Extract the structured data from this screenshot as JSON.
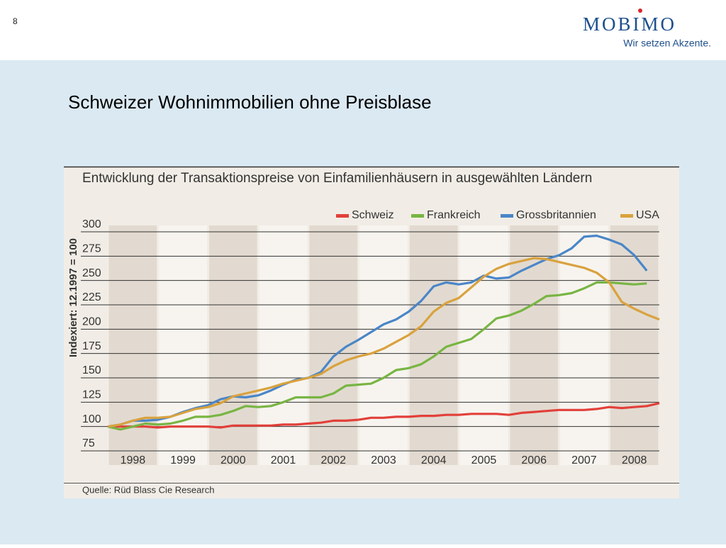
{
  "header": {
    "page_number": "8",
    "logo": "MOBIMO",
    "tagline": "Wir setzen Akzente."
  },
  "slide_title": "Schweizer Wohnimmobilien ohne Preisblase",
  "chart_data": {
    "type": "line",
    "title": "Entwicklung der Transaktionspreise von Einfamilienhäusern in ausgewählten Ländern",
    "y_label": "Indexiert: 12.1997 = 100",
    "source": "Quelle: Rüd Blass Cie Research",
    "categories": [
      "1998",
      "1999",
      "2000",
      "2001",
      "2002",
      "2003",
      "2004",
      "2005",
      "2006",
      "2007",
      "2008"
    ],
    "xlim": [
      1998,
      2009
    ],
    "x": [
      1998,
      1998.25,
      1998.5,
      1998.75,
      1999,
      1999.25,
      1999.5,
      1999.75,
      2000,
      2000.25,
      2000.5,
      2000.75,
      2001,
      2001.25,
      2001.5,
      2001.75,
      2002,
      2002.25,
      2002.5,
      2002.75,
      2003,
      2003.25,
      2003.5,
      2003.75,
      2004,
      2004.25,
      2004.5,
      2004.75,
      2005,
      2005.25,
      2005.5,
      2005.75,
      2006,
      2006.25,
      2006.5,
      2006.75,
      2007,
      2007.25,
      2007.5,
      2007.75,
      2008,
      2008.25,
      2008.5,
      2008.75,
      2009
    ],
    "ylim": [
      75,
      300
    ],
    "yticks": [
      75,
      100,
      125,
      150,
      175,
      200,
      225,
      250,
      275,
      300
    ],
    "grid": true,
    "legend": "top-right",
    "series": [
      {
        "name": "Schweiz",
        "color": "#e2403a",
        "values": [
          100,
          100,
          100,
          100,
          99,
          100,
          100,
          100,
          100,
          99,
          101,
          101,
          101,
          101,
          102,
          102,
          103,
          104,
          106,
          106,
          107,
          109,
          109,
          110,
          110,
          111,
          111,
          112,
          112,
          113,
          113,
          113,
          112,
          114,
          115,
          116,
          117,
          117,
          117,
          118,
          120,
          119,
          120,
          121,
          124
        ]
      },
      {
        "name": "Frankreich",
        "color": "#78b543",
        "values": [
          100,
          97,
          100,
          103,
          102,
          103,
          106,
          110,
          110,
          112,
          116,
          121,
          120,
          121,
          125,
          130,
          130,
          130,
          134,
          142,
          143,
          144,
          150,
          158,
          160,
          164,
          172,
          182,
          186,
          190,
          200,
          211,
          214,
          219,
          226,
          234,
          235,
          237,
          242,
          248,
          248,
          247,
          246,
          247,
          null
        ]
      },
      {
        "name": "Grossbritannien",
        "color": "#4a86c8",
        "values": [
          100,
          102,
          106,
          106,
          107,
          110,
          115,
          119,
          122,
          128,
          131,
          130,
          132,
          137,
          143,
          148,
          150,
          156,
          172,
          182,
          189,
          197,
          205,
          210,
          218,
          229,
          244,
          248,
          246,
          248,
          255,
          252,
          253,
          260,
          266,
          272,
          276,
          283,
          295,
          296,
          292,
          287,
          276,
          260,
          null
        ]
      },
      {
        "name": "USA",
        "color": "#d9a23e",
        "values": [
          100,
          102,
          106,
          109,
          109,
          110,
          114,
          118,
          120,
          124,
          131,
          134,
          137,
          140,
          144,
          147,
          150,
          154,
          162,
          168,
          172,
          175,
          180,
          187,
          194,
          203,
          218,
          227,
          232,
          243,
          254,
          262,
          267,
          270,
          273,
          272,
          269,
          266,
          263,
          258,
          248,
          228,
          221,
          215,
          210
        ]
      }
    ]
  }
}
